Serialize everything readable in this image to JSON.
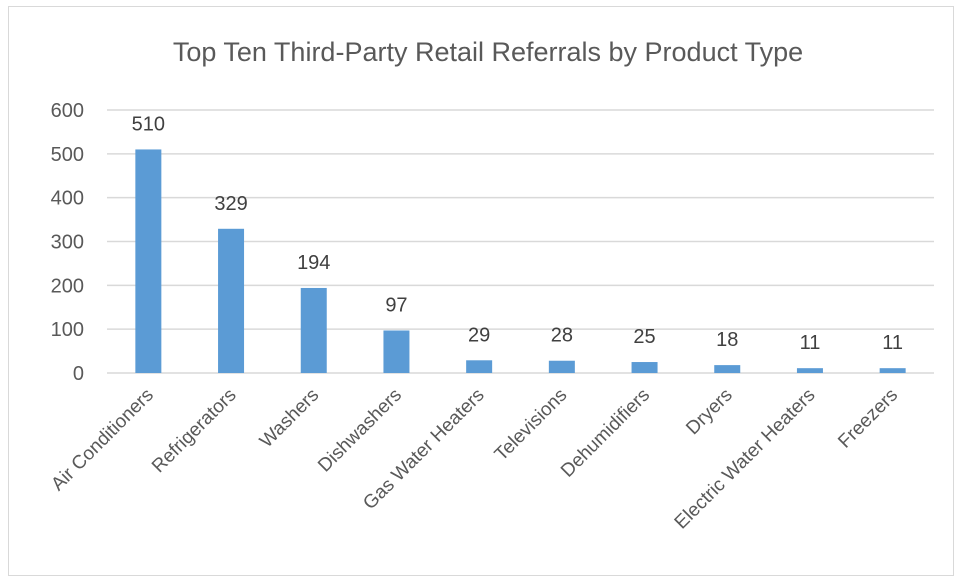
{
  "chart_data": {
    "type": "bar",
    "title": "Top Ten Third-Party Retail Referrals by Product Type",
    "xlabel": "",
    "ylabel": "",
    "categories": [
      "Air Conditioners",
      "Refrigerators",
      "Washers",
      "Dishwashers",
      "Gas Water Heaters",
      "Televisions",
      "Dehumidifiers",
      "Dryers",
      "Electric Water Heaters",
      "Freezers"
    ],
    "values": [
      510,
      329,
      194,
      97,
      29,
      28,
      25,
      18,
      11,
      11
    ],
    "ylim": [
      0,
      600
    ],
    "yticks": [
      "0",
      "100",
      "200",
      "300",
      "400",
      "500",
      "600"
    ],
    "ytick_values": [
      0,
      100,
      200,
      300,
      400,
      500,
      600
    ],
    "grid": true,
    "data_labels": true,
    "bar_color": "#5b9bd5"
  }
}
